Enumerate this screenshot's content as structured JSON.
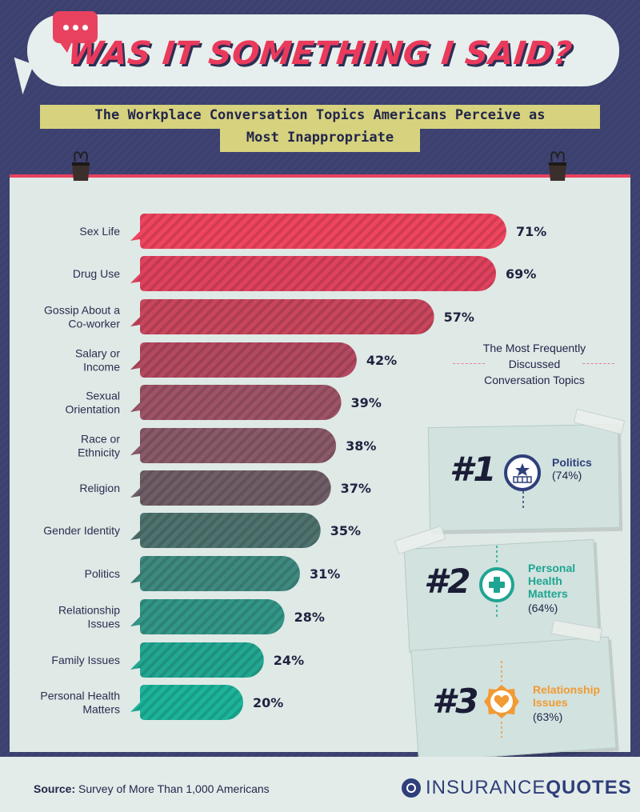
{
  "header": {
    "title": "WAS IT SOMETHING I SAID?",
    "subtitle_line1": "The Workplace Conversation Topics Americans Perceive as",
    "subtitle_line2": "Most Inappropriate"
  },
  "chart_data": {
    "type": "bar",
    "orientation": "horizontal",
    "unit": "%",
    "categories": [
      "Sex Life",
      "Drug Use",
      "Gossip About a Co-worker",
      "Salary or Income",
      "Sexual Orientation",
      "Race or Ethnicity",
      "Religion",
      "Gender Identity",
      "Politics",
      "Relationship Issues",
      "Family Issues",
      "Personal Health Matters"
    ],
    "category_lines": [
      [
        "Sex Life"
      ],
      [
        "Drug Use"
      ],
      [
        "Gossip About a",
        "Co-worker"
      ],
      [
        "Salary or",
        "Income"
      ],
      [
        "Sexual",
        "Orientation"
      ],
      [
        "Race or",
        "Ethnicity"
      ],
      [
        "Religion"
      ],
      [
        "Gender Identity"
      ],
      [
        "Politics"
      ],
      [
        "Relationship",
        "Issues"
      ],
      [
        "Family Issues"
      ],
      [
        "Personal Health",
        "Matters"
      ]
    ],
    "values": [
      71,
      69,
      57,
      42,
      39,
      38,
      37,
      35,
      31,
      28,
      24,
      20
    ],
    "value_labels": [
      "71%",
      "69%",
      "57%",
      "42%",
      "39%",
      "38%",
      "37%",
      "35%",
      "31%",
      "28%",
      "24%",
      "20%"
    ],
    "colors": [
      "#f0455f",
      "#e0425e",
      "#c9465d",
      "#b44a61",
      "#9e5466",
      "#8a5a69",
      "#6f5e67",
      "#4f736f",
      "#3f8a80",
      "#329787",
      "#22a892",
      "#1cb49b"
    ],
    "xlim": [
      0,
      100
    ],
    "grid": false,
    "legend": "none"
  },
  "side_panel": {
    "title_lines": [
      "The Most Frequently",
      "Discussed",
      "Conversation Topics"
    ],
    "items": [
      {
        "rank": "#1",
        "name_lines": [
          "Politics"
        ],
        "value": "(74%)",
        "color": "#2f3f7a",
        "icon": "capitol-icon"
      },
      {
        "rank": "#2",
        "name_lines": [
          "Personal",
          "Health",
          "Matters"
        ],
        "value": "(64%)",
        "color": "#1fa592",
        "icon": "medical-cross-icon"
      },
      {
        "rank": "#3",
        "name_lines": [
          "Relationship",
          "Issues"
        ],
        "value": "(63%)",
        "color": "#f29a33",
        "icon": "heart-icon"
      }
    ]
  },
  "footer": {
    "source_label": "Source:",
    "source_text": "Survey of More Than 1,000 Americans",
    "logo_light": "INSURANCE",
    "logo_bold": "QUOTES"
  }
}
